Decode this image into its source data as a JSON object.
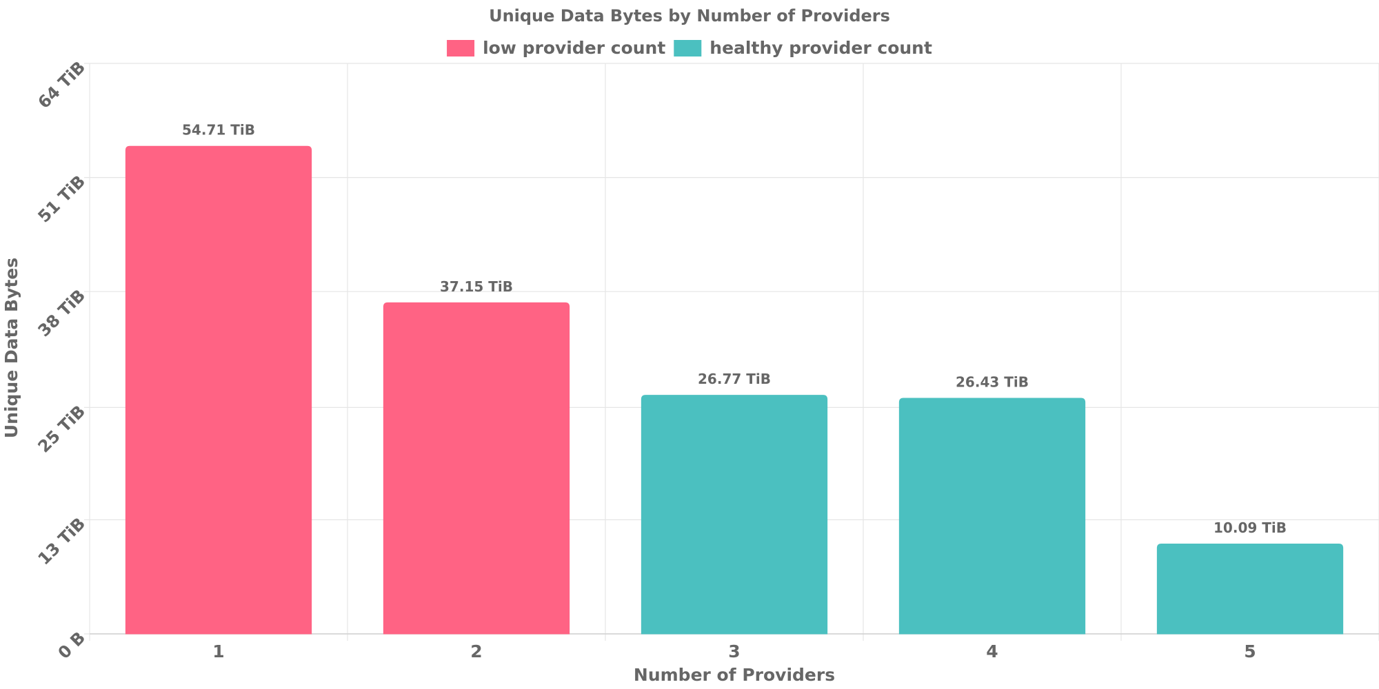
{
  "chart_data": {
    "type": "bar",
    "title": "Unique Data Bytes by Number of Providers",
    "x_label": "Number of Providers",
    "y_label": "Unique Data Bytes",
    "categories": [
      "1",
      "2",
      "3",
      "4",
      "5"
    ],
    "series": [
      {
        "name": "low provider count",
        "color": "#ff6384",
        "values": [
          54.71,
          37.15,
          null,
          null,
          null
        ],
        "value_labels": [
          "54.71 TiB",
          "37.15 TiB",
          null,
          null,
          null
        ]
      },
      {
        "name": "healthy provider count",
        "color": "#4bc0c0",
        "values": [
          null,
          null,
          26.77,
          26.43,
          10.09
        ],
        "value_labels": [
          null,
          null,
          "26.77 TiB",
          "26.43 TiB",
          "10.09 TiB"
        ]
      }
    ],
    "ylim": [
      0,
      64
    ],
    "yticks": [
      {
        "value": 0,
        "label": "0 B"
      },
      {
        "value": 12.8,
        "label": "13 TiB"
      },
      {
        "value": 25.4,
        "label": "25 TiB"
      },
      {
        "value": 38.4,
        "label": "38 TiB"
      },
      {
        "value": 51.2,
        "label": "51 TiB"
      },
      {
        "value": 64,
        "label": "64 TiB"
      }
    ],
    "grid": true,
    "legend": "top"
  }
}
